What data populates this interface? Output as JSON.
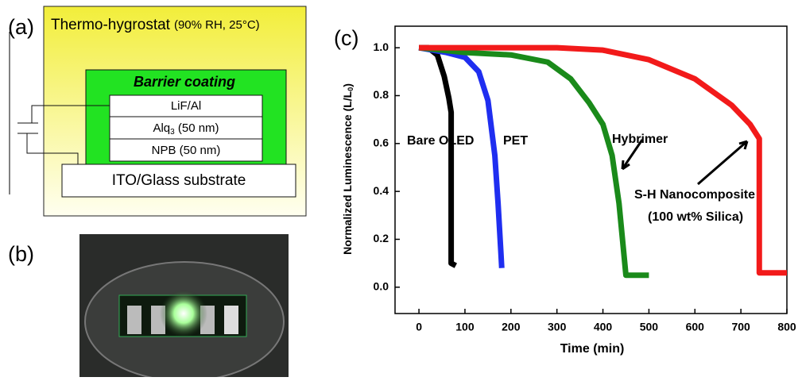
{
  "panel_a": {
    "label": "(a)",
    "chamber": "Thermo-hygrostat",
    "condition": "(90% RH, 25°C)",
    "coating": "Barrier coating",
    "layers": [
      {
        "text": "LiF/Al"
      },
      {
        "text": "Alq",
        "sub": "3",
        "rest": " (50 nm)"
      },
      {
        "text": "NPB (50 nm)"
      }
    ],
    "substrate": "ITO/Glass substrate"
  },
  "panel_b": {
    "label": "(b)"
  },
  "chart_data": {
    "type": "line",
    "label": "(c)",
    "xlabel": "Time (min)",
    "ylabel": {
      "text": "Normalized Luminescence (L/L",
      "sub": "0",
      "rest": ")"
    },
    "xlim": [
      -52,
      800
    ],
    "ylim": [
      -0.11,
      1.09
    ],
    "xticks": [
      0,
      100,
      200,
      300,
      400,
      500,
      600,
      700,
      800
    ],
    "yticks": [
      {
        "value": 0,
        "label": "0.0"
      },
      0.2,
      0.4,
      0.6,
      0.8,
      {
        "value": 1,
        "label": "1.0"
      }
    ],
    "series": [
      {
        "name": "Bare OLED",
        "color": "#000000",
        "x": [
          0,
          20,
          40,
          55,
          65,
          70,
          70,
          80
        ],
        "values": [
          1.0,
          1.0,
          0.97,
          0.88,
          0.79,
          0.73,
          0.1,
          0.09
        ]
      },
      {
        "name": "PET",
        "color": "#1f2ef0",
        "x": [
          0,
          60,
          100,
          130,
          150,
          165,
          172,
          178,
          180
        ],
        "values": [
          1.0,
          0.98,
          0.96,
          0.9,
          0.78,
          0.55,
          0.35,
          0.15,
          0.08
        ]
      },
      {
        "name": "Hybrimer",
        "color": "#1a8a1a",
        "x": [
          0,
          100,
          200,
          280,
          330,
          370,
          400,
          420,
          435,
          445,
          450,
          500
        ],
        "values": [
          1.0,
          0.98,
          0.97,
          0.94,
          0.87,
          0.77,
          0.68,
          0.55,
          0.35,
          0.15,
          0.05,
          0.05
        ]
      },
      {
        "name": "S-H Nanocomposite",
        "color": "#f21a1a",
        "x": [
          0,
          200,
          300,
          400,
          500,
          600,
          680,
          720,
          740,
          740,
          800
        ],
        "values": [
          1.0,
          1.0,
          1.0,
          0.99,
          0.95,
          0.87,
          0.76,
          0.68,
          0.62,
          0.06,
          0.06
        ]
      }
    ],
    "annotations": [
      "(100 wt% Silica)"
    ]
  }
}
